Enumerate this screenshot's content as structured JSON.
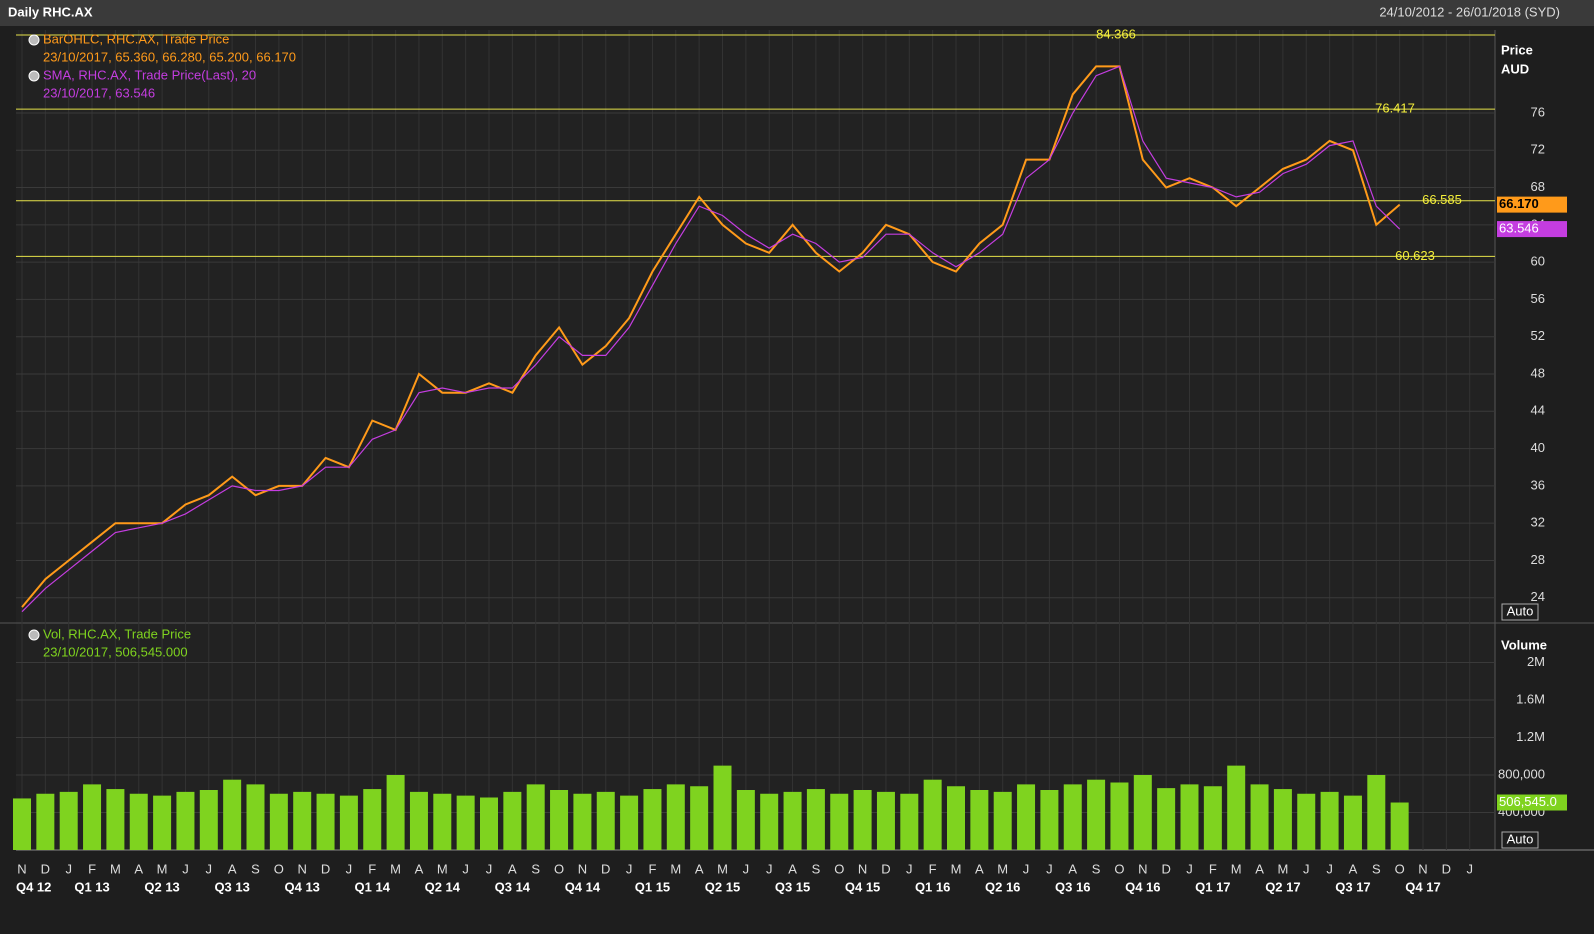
{
  "header": {
    "title": "Daily RHC.AX",
    "range": "24/10/2012 - 26/01/2018 (SYD)"
  },
  "chart_data": [
    {
      "type": "line",
      "axis_title": "Price",
      "axis_unit": "AUD",
      "scale_mode": "Auto",
      "categories": [
        "N",
        "D",
        "J",
        "F",
        "M",
        "A",
        "M",
        "J",
        "J",
        "A",
        "S",
        "O",
        "N",
        "D",
        "J",
        "F",
        "M",
        "A",
        "M",
        "J",
        "J",
        "A",
        "S",
        "O",
        "N",
        "D",
        "J",
        "F",
        "M",
        "A",
        "M",
        "J",
        "J",
        "A",
        "S",
        "O",
        "N",
        "D",
        "J",
        "F",
        "M",
        "A",
        "M",
        "J",
        "J",
        "A",
        "S",
        "O",
        "N",
        "D",
        "J",
        "F",
        "M",
        "A",
        "M",
        "J",
        "J",
        "A",
        "S",
        "O",
        "N",
        "D",
        "J"
      ],
      "quarters": [
        "Q4 12",
        "Q1 13",
        "Q2 13",
        "Q3 13",
        "Q4 13",
        "Q1 14",
        "Q2 14",
        "Q3 14",
        "Q4 14",
        "Q1 15",
        "Q2 15",
        "Q3 15",
        "Q4 15",
        "Q1 16",
        "Q2 16",
        "Q3 16",
        "Q4 16",
        "Q1 17",
        "Q2 17",
        "Q3 17",
        "Q4 17"
      ],
      "series": [
        {
          "name": "BarOHLC, RHC.AX, Trade Price",
          "legend_detail": "23/10/2017, 65.360, 66.280, 65.200, 66.170",
          "color": "#ff9a1a",
          "values": [
            23,
            26,
            28,
            30,
            32,
            32,
            32,
            34,
            35,
            37,
            35,
            36,
            36,
            39,
            38,
            43,
            42,
            48,
            46,
            46,
            47,
            46,
            50,
            53,
            49,
            51,
            54,
            59,
            63,
            67,
            64,
            62,
            61,
            64,
            61,
            59,
            61,
            64,
            63,
            60,
            59,
            62,
            64,
            71,
            71,
            78,
            81,
            81,
            71,
            68,
            69,
            68,
            66,
            68,
            70,
            71,
            73,
            72,
            64,
            66.17,
            null,
            null,
            null
          ],
          "last": {
            "value": 66.17,
            "label": "66.170"
          }
        },
        {
          "name": "SMA, RHC.AX, Trade Price(Last),  20",
          "legend_detail": "23/10/2017, 63.546",
          "color": "#c43de0",
          "values": [
            22.5,
            25,
            27,
            29,
            31,
            31.5,
            32,
            33,
            34.5,
            36,
            35.5,
            35.5,
            36,
            38,
            38,
            41,
            42,
            46,
            46.5,
            46,
            46.5,
            46.5,
            49,
            52,
            50,
            50,
            53,
            57.5,
            62,
            66,
            65,
            63,
            61.5,
            63,
            62,
            60,
            60.5,
            63,
            63,
            61,
            59.5,
            61,
            63,
            69,
            71,
            76,
            80,
            81,
            73,
            69,
            68.5,
            68,
            67,
            67.5,
            69.5,
            70.5,
            72.5,
            73,
            66,
            63.546,
            null,
            null,
            null
          ],
          "last": 63.546
        }
      ],
      "levels": [
        84.366,
        76.417,
        66.585,
        60.623
      ],
      "ylim": [
        21.4,
        84.9
      ],
      "yticks": [
        24,
        28,
        32,
        36,
        40,
        44,
        48,
        52,
        56,
        60,
        64,
        68,
        72,
        76
      ],
      "grid": true
    },
    {
      "type": "bar",
      "axis_title": "Volume",
      "scale_mode": "Auto",
      "series": [
        {
          "name": "Vol, RHC.AX, Trade Price",
          "legend_detail": "23/10/2017, 506,545.000",
          "color": "#7fd31f",
          "values": [
            550000,
            600000,
            620000,
            700000,
            650000,
            600000,
            580000,
            620000,
            640000,
            750000,
            700000,
            600000,
            620000,
            600000,
            580000,
            650000,
            800000,
            620000,
            600000,
            580000,
            560000,
            620000,
            700000,
            640000,
            600000,
            620000,
            580000,
            650000,
            700000,
            680000,
            900000,
            640000,
            600000,
            620000,
            650000,
            600000,
            640000,
            620000,
            600000,
            750000,
            680000,
            640000,
            620000,
            700000,
            640000,
            700000,
            750000,
            720000,
            800000,
            660000,
            700000,
            680000,
            900000,
            700000,
            650000,
            600000,
            620000,
            580000,
            800000,
            506545,
            null,
            null,
            null
          ],
          "last": {
            "value": 506545,
            "label": "506,545.0"
          }
        }
      ],
      "ylim": [
        0,
        2400000
      ],
      "yticks": [
        {
          "value": 400000,
          "label": "400,000"
        },
        {
          "value": 800000,
          "label": "800,000"
        },
        {
          "value": 1200000,
          "label": "1.2M"
        },
        {
          "value": 1600000,
          "label": "1.6M"
        },
        {
          "value": 2000000,
          "label": "2M"
        }
      ],
      "grid": true
    }
  ]
}
